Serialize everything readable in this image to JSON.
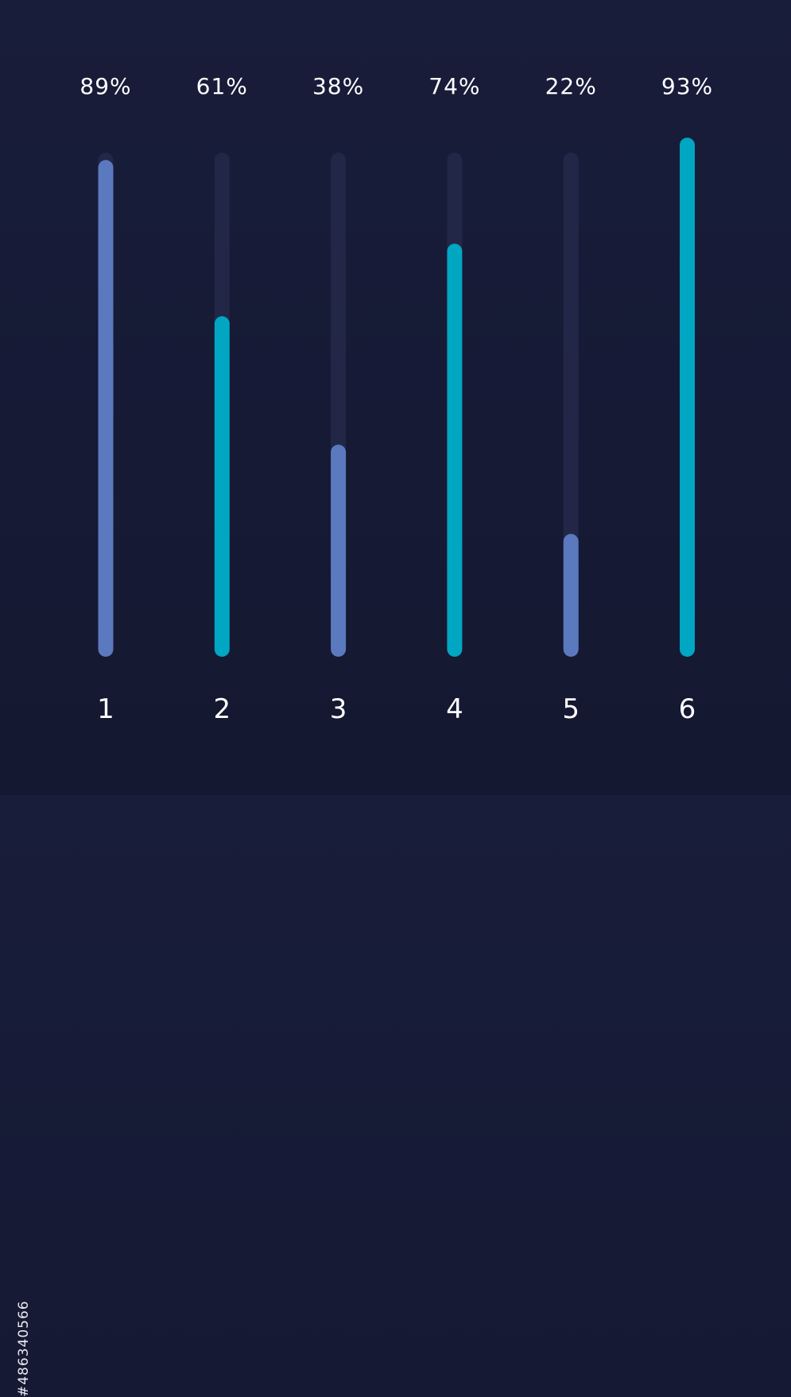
{
  "chart_data": {
    "type": "bar",
    "orientation": "vertical",
    "categories": [
      "1",
      "2",
      "3",
      "4",
      "5",
      "6"
    ],
    "values": [
      89,
      61,
      38,
      74,
      22,
      93
    ],
    "value_labels": [
      "89%",
      "61%",
      "38%",
      "74%",
      "22%",
      "93%"
    ],
    "ylim": [
      0,
      100
    ],
    "grid": false,
    "colors": {
      "background": "#171b37",
      "track": "#222747",
      "bar_a": "#5b79bf",
      "bar_b": "#00a6c2",
      "text": "#ffffff"
    },
    "bar_colors": [
      "#5b79bf",
      "#00a6c2",
      "#5b79bf",
      "#00a6c2",
      "#5b79bf",
      "#00a6c2"
    ]
  },
  "watermark": {
    "text": "#486340566"
  }
}
